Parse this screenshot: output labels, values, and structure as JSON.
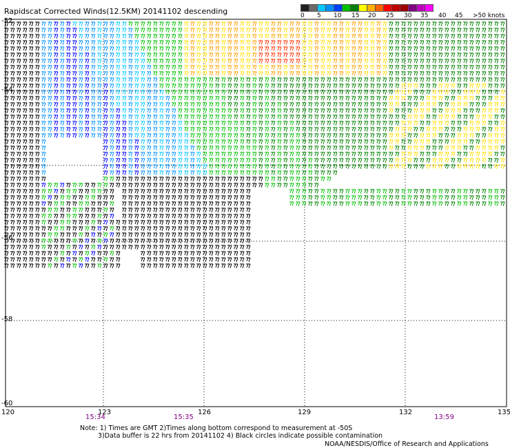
{
  "title": "Rapidscat Corrected Winds(12.5KM) 20141102 descending",
  "legend": {
    "colors": [
      "#202020",
      "#6a6a6a",
      "#00c8ff",
      "#0090ff",
      "#0040ff",
      "#00c000",
      "#008000",
      "#ffff00",
      "#ffb000",
      "#ff6000",
      "#ff0000",
      "#c00000",
      "#a00000",
      "#800080",
      "#c000c0",
      "#ff00ff"
    ],
    "labels": [
      "0",
      "5",
      "10",
      "15",
      "20",
      "25",
      "30",
      "35",
      "40",
      "45",
      ">50 knots"
    ]
  },
  "axes": {
    "x_ticks": [
      "120",
      "123",
      "126",
      "129",
      "132",
      "135"
    ],
    "y_ticks": [
      "-52",
      "-54",
      "-56",
      "-58",
      "-60"
    ]
  },
  "times": [
    "15:34",
    "15:35",
    "13:59"
  ],
  "notes": {
    "line1": "Note: 1) Times are GMT 2)Times along bottom correspond to measurement at -50S",
    "line2": "3)Data buffer is 22 hrs from 20141102 4) Black circles indicate possible contamination"
  },
  "credit": "NOAA/NESDIS/Office of Research and Applications",
  "colors": {
    "black": "#000000",
    "cyan": "#00c8ff",
    "lightblue": "#0090ff",
    "blue": "#0000ff",
    "green": "#00c000",
    "darkgreen": "#008000",
    "yellow": "#ffe000",
    "orange": "#ffa000",
    "red": "#ff3000",
    "grid": "#000000"
  }
}
